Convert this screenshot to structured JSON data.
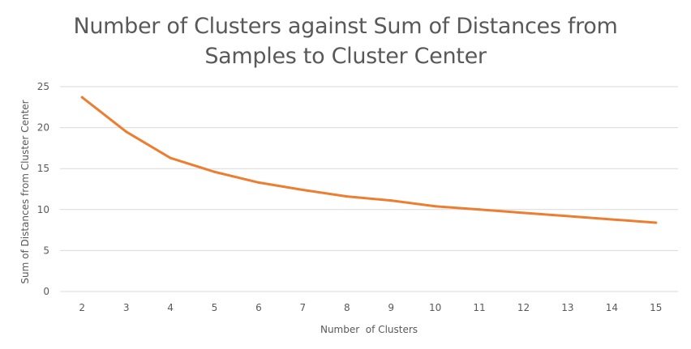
{
  "chart_data": {
    "type": "line",
    "title_lines": [
      "Number of Clusters against Sum of Distances from",
      "Samples to Cluster Center"
    ],
    "xlabel": "Number  of Clusters",
    "ylabel": "Sum of Distances from Cluster Center",
    "categories": [
      "2",
      "3",
      "4",
      "5",
      "6",
      "7",
      "8",
      "9",
      "10",
      "11",
      "12",
      "13",
      "14",
      "15"
    ],
    "series": [
      {
        "values": [
          23.7,
          19.5,
          16.3,
          14.6,
          13.3,
          12.4,
          11.6,
          11.1,
          10.4,
          10.0,
          9.6,
          9.2,
          8.8,
          8.4
        ]
      }
    ],
    "yticks": [
      "0",
      "5",
      "10",
      "15",
      "20",
      "25"
    ],
    "ylim": [
      0,
      25
    ],
    "grid": true,
    "legend": "none",
    "colors": {
      "line": "#ED7D31",
      "grid": "#D9D9D9",
      "text": "#595959"
    }
  }
}
